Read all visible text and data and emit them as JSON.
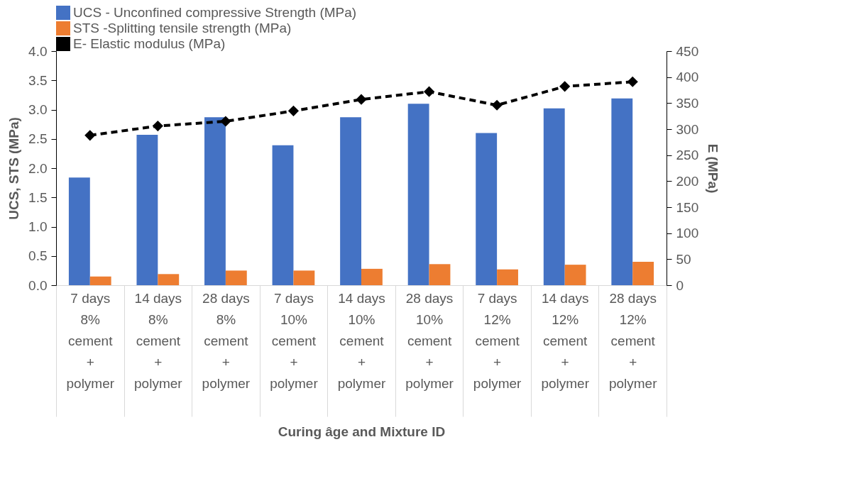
{
  "chart_data": {
    "type": "bar",
    "xlabel": "Curing âge and Mixture ID",
    "ylabel": "UCS, STS (MPa)",
    "y2label": "E (MPa)",
    "categories": [
      "7 days\n8%\ncement\n+\npolymer",
      "14 days\n8%\ncement\n+\npolymer",
      "28 days\n8%\ncement\n+\npolymer",
      "7 days\n10%\ncement\n+\npolymer",
      "14 days\n10%\ncement\n+\npolymer",
      "28 days\n10%\ncement\n+\npolymer",
      "7 days\n12%\ncement\n+\npolymer",
      "14 days\n12%\ncement\n+\npolymer",
      "28 days\n12%\ncement\n+\npolymer"
    ],
    "series": [
      {
        "name": "UCS - Unconfined compressive Strength (MPa)",
        "color": "#4472c4",
        "values": [
          1.84,
          2.57,
          2.87,
          2.39,
          2.87,
          3.1,
          2.6,
          3.02,
          3.19
        ]
      },
      {
        "name": "STS -Splitting tensile strength (MPa)",
        "color": "#ed7d31",
        "values": [
          0.15,
          0.19,
          0.25,
          0.25,
          0.28,
          0.36,
          0.27,
          0.35,
          0.4
        ]
      },
      {
        "name": "E- Elastic modulus (MPa)",
        "type": "line",
        "axis": "y2",
        "color": "#000000",
        "marker": "diamond",
        "line_style": "dashed",
        "values": [
          288,
          306,
          315,
          335,
          357,
          372,
          346,
          382,
          391
        ]
      }
    ],
    "ylim": [
      0,
      4
    ],
    "yticks": [
      {
        "value": 0,
        "label": "0.0"
      },
      {
        "value": 0.5,
        "label": "0.5"
      },
      {
        "value": 1,
        "label": "1.0"
      },
      {
        "value": 1.5,
        "label": "1.5"
      },
      {
        "value": 2,
        "label": "2.0"
      },
      {
        "value": 2.5,
        "label": "2.5"
      },
      {
        "value": 3,
        "label": "3.0"
      },
      {
        "value": 3.5,
        "label": "3.5"
      },
      {
        "value": 4,
        "label": "4.0"
      }
    ],
    "y2lim": [
      0,
      450
    ],
    "y2ticks": [
      0,
      50,
      100,
      150,
      200,
      250,
      300,
      350,
      400,
      450
    ],
    "grid": false,
    "legend": "top"
  }
}
